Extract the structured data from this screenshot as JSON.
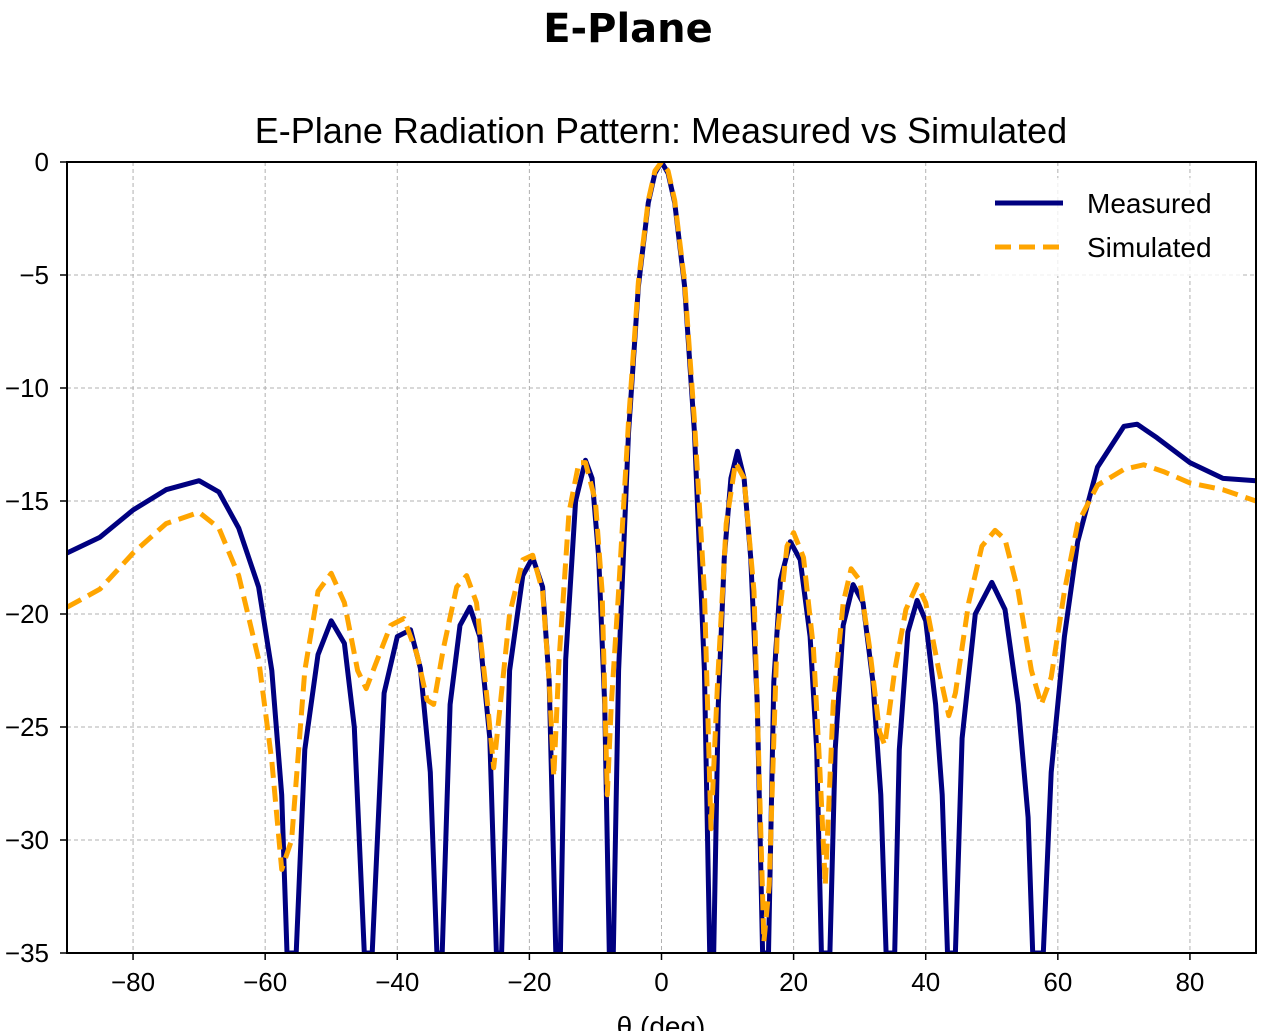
{
  "header": {
    "title": "E-Plane"
  },
  "chart_data": {
    "type": "line",
    "title": "E-Plane Radiation Pattern: Measured vs Simulated",
    "xlabel": "θ (deg)",
    "ylabel": "",
    "xlim": [
      -90,
      90
    ],
    "ylim": [
      -35,
      0
    ],
    "x_ticks": [
      -80,
      -60,
      -40,
      -20,
      0,
      20,
      40,
      60,
      80
    ],
    "y_ticks": [
      0,
      -5,
      -10,
      -15,
      -20,
      -25,
      -30,
      -35
    ],
    "x_tick_labels": [
      "−80",
      "−60",
      "−40",
      "−20",
      "0",
      "20",
      "40",
      "60",
      "80"
    ],
    "y_tick_labels": [
      "0",
      "−5",
      "−10",
      "−15",
      "−20",
      "−25",
      "−30",
      "−35"
    ],
    "grid": true,
    "legend_position": "top-right",
    "series": [
      {
        "name": "Measured",
        "color": "#000080",
        "style": "solid",
        "points": [
          [
            -90,
            -17.3
          ],
          [
            -85,
            -16.6
          ],
          [
            -80,
            -15.4
          ],
          [
            -75,
            -14.5
          ],
          [
            -70,
            -14.1
          ],
          [
            -67,
            -14.6
          ],
          [
            -64,
            -16.2
          ],
          [
            -61,
            -18.8
          ],
          [
            -59,
            -22.5
          ],
          [
            -57.5,
            -28
          ],
          [
            -56.7,
            -35
          ],
          [
            -55.3,
            -35
          ],
          [
            -54,
            -26
          ],
          [
            -52,
            -21.8
          ],
          [
            -50,
            -20.3
          ],
          [
            -48,
            -21.3
          ],
          [
            -46.5,
            -25
          ],
          [
            -45,
            -35
          ],
          [
            -43.8,
            -35
          ],
          [
            -42,
            -23.5
          ],
          [
            -40,
            -21
          ],
          [
            -38,
            -20.7
          ],
          [
            -36.5,
            -22.4
          ],
          [
            -35,
            -27
          ],
          [
            -34,
            -35
          ],
          [
            -33.2,
            -35
          ],
          [
            -32,
            -24
          ],
          [
            -30.5,
            -20.5
          ],
          [
            -29,
            -19.7
          ],
          [
            -27.5,
            -21
          ],
          [
            -26,
            -25.5
          ],
          [
            -25,
            -35
          ],
          [
            -24.2,
            -35
          ],
          [
            -23,
            -22.5
          ],
          [
            -21,
            -18.3
          ],
          [
            -19.5,
            -17.5
          ],
          [
            -18,
            -18.8
          ],
          [
            -17,
            -23
          ],
          [
            -16,
            -35
          ],
          [
            -15.3,
            -35
          ],
          [
            -14.5,
            -22
          ],
          [
            -13,
            -15
          ],
          [
            -11.5,
            -13.2
          ],
          [
            -10.5,
            -14
          ],
          [
            -9.5,
            -17.5
          ],
          [
            -8.6,
            -24
          ],
          [
            -7.9,
            -35
          ],
          [
            -7.3,
            -35
          ],
          [
            -6.5,
            -22.5
          ],
          [
            -5,
            -12
          ],
          [
            -3.5,
            -5.5
          ],
          [
            -2,
            -1.8
          ],
          [
            -1,
            -0.5
          ],
          [
            0,
            0
          ],
          [
            1,
            -0.5
          ],
          [
            2,
            -1.8
          ],
          [
            3.5,
            -5.5
          ],
          [
            5,
            -12
          ],
          [
            6.5,
            -22.5
          ],
          [
            7.3,
            -35
          ],
          [
            7.9,
            -35
          ],
          [
            8.6,
            -24
          ],
          [
            9.5,
            -17.5
          ],
          [
            10.5,
            -14
          ],
          [
            11.5,
            -12.8
          ],
          [
            12.5,
            -14
          ],
          [
            13.5,
            -17.5
          ],
          [
            14.5,
            -24
          ],
          [
            15.3,
            -35
          ],
          [
            16.2,
            -35
          ],
          [
            17,
            -23
          ],
          [
            18,
            -18.5
          ],
          [
            19.5,
            -16.8
          ],
          [
            21,
            -17.6
          ],
          [
            22.5,
            -21
          ],
          [
            23.5,
            -26
          ],
          [
            24.2,
            -35
          ],
          [
            25.5,
            -35
          ],
          [
            26.3,
            -26
          ],
          [
            27.5,
            -20.5
          ],
          [
            29,
            -18.7
          ],
          [
            30.5,
            -19.5
          ],
          [
            32,
            -23
          ],
          [
            33.2,
            -28
          ],
          [
            34,
            -35
          ],
          [
            35.3,
            -35
          ],
          [
            36,
            -26
          ],
          [
            37.3,
            -20.8
          ],
          [
            38.7,
            -19.4
          ],
          [
            40,
            -20.3
          ],
          [
            41.5,
            -24
          ],
          [
            42.5,
            -28
          ],
          [
            43.3,
            -35
          ],
          [
            44.5,
            -35
          ],
          [
            45.5,
            -25.5
          ],
          [
            47.5,
            -20
          ],
          [
            50,
            -18.6
          ],
          [
            52,
            -19.8
          ],
          [
            54,
            -24
          ],
          [
            55.5,
            -29
          ],
          [
            56.2,
            -35
          ],
          [
            57.8,
            -35
          ],
          [
            59,
            -27
          ],
          [
            61,
            -21
          ],
          [
            63,
            -16.8
          ],
          [
            66,
            -13.5
          ],
          [
            70,
            -11.7
          ],
          [
            72,
            -11.6
          ],
          [
            75,
            -12.2
          ],
          [
            80,
            -13.3
          ],
          [
            85,
            -14
          ],
          [
            90,
            -14.1
          ]
        ]
      },
      {
        "name": "Simulated",
        "color": "#FFA500",
        "style": "dashed",
        "points": [
          [
            -90,
            -19.7
          ],
          [
            -85,
            -18.9
          ],
          [
            -80,
            -17.3
          ],
          [
            -75,
            -16
          ],
          [
            -70,
            -15.5
          ],
          [
            -67,
            -16.2
          ],
          [
            -64,
            -18.3
          ],
          [
            -61,
            -22
          ],
          [
            -59,
            -26.5
          ],
          [
            -57.5,
            -31.3
          ],
          [
            -56,
            -30
          ],
          [
            -54,
            -22.5
          ],
          [
            -52,
            -19
          ],
          [
            -50,
            -18.2
          ],
          [
            -48,
            -19.5
          ],
          [
            -46,
            -22.5
          ],
          [
            -44.7,
            -23.3
          ],
          [
            -43,
            -22
          ],
          [
            -41,
            -20.5
          ],
          [
            -39,
            -20.2
          ],
          [
            -37,
            -21.8
          ],
          [
            -35.5,
            -23.8
          ],
          [
            -34.5,
            -24
          ],
          [
            -33,
            -21.5
          ],
          [
            -31,
            -18.8
          ],
          [
            -29.5,
            -18.3
          ],
          [
            -28,
            -19.5
          ],
          [
            -26.5,
            -23.5
          ],
          [
            -25.4,
            -26.8
          ],
          [
            -24.4,
            -24
          ],
          [
            -23,
            -20
          ],
          [
            -21,
            -17.6
          ],
          [
            -19.5,
            -17.4
          ],
          [
            -18,
            -19
          ],
          [
            -17,
            -23
          ],
          [
            -16.3,
            -27.2
          ],
          [
            -15.5,
            -22
          ],
          [
            -14,
            -15.5
          ],
          [
            -12.5,
            -13.3
          ],
          [
            -11.5,
            -13.3
          ],
          [
            -10,
            -15
          ],
          [
            -9,
            -19
          ],
          [
            -8.2,
            -28
          ],
          [
            -7.6,
            -24
          ],
          [
            -6.5,
            -19
          ],
          [
            -5,
            -11.5
          ],
          [
            -3.5,
            -5.3
          ],
          [
            -2,
            -1.7
          ],
          [
            -1,
            -0.4
          ],
          [
            0,
            0
          ],
          [
            1,
            -0.4
          ],
          [
            2,
            -1.7
          ],
          [
            3.5,
            -5.3
          ],
          [
            5,
            -11.5
          ],
          [
            6.5,
            -19
          ],
          [
            7.5,
            -29.5
          ],
          [
            8.5,
            -23
          ],
          [
            9.8,
            -16
          ],
          [
            11.2,
            -13.3
          ],
          [
            12.5,
            -14
          ],
          [
            14,
            -19
          ],
          [
            15.5,
            -34.5
          ],
          [
            16.3,
            -32
          ],
          [
            17.5,
            -21
          ],
          [
            19,
            -17
          ],
          [
            20,
            -16.4
          ],
          [
            21.5,
            -17.5
          ],
          [
            23,
            -21.5
          ],
          [
            24,
            -27
          ],
          [
            24.8,
            -32
          ],
          [
            26,
            -24
          ],
          [
            27.5,
            -19.5
          ],
          [
            28.7,
            -18
          ],
          [
            30,
            -18.5
          ],
          [
            31.5,
            -21.5
          ],
          [
            33,
            -25.2
          ],
          [
            33.8,
            -25.8
          ],
          [
            35.3,
            -22.5
          ],
          [
            37,
            -19.8
          ],
          [
            38.7,
            -18.7
          ],
          [
            40,
            -19.5
          ],
          [
            42,
            -22.5
          ],
          [
            43.5,
            -24.5
          ],
          [
            44.5,
            -23.5
          ],
          [
            46.5,
            -19.5
          ],
          [
            48.5,
            -17
          ],
          [
            50.5,
            -16.3
          ],
          [
            52,
            -16.7
          ],
          [
            54,
            -19
          ],
          [
            56,
            -22.5
          ],
          [
            57.5,
            -24
          ],
          [
            59,
            -22.8
          ],
          [
            61,
            -19
          ],
          [
            63,
            -16
          ],
          [
            66,
            -14.3
          ],
          [
            70,
            -13.6
          ],
          [
            73,
            -13.4
          ],
          [
            76,
            -13.7
          ],
          [
            80,
            -14.2
          ],
          [
            85,
            -14.5
          ],
          [
            90,
            -15
          ]
        ]
      }
    ]
  }
}
